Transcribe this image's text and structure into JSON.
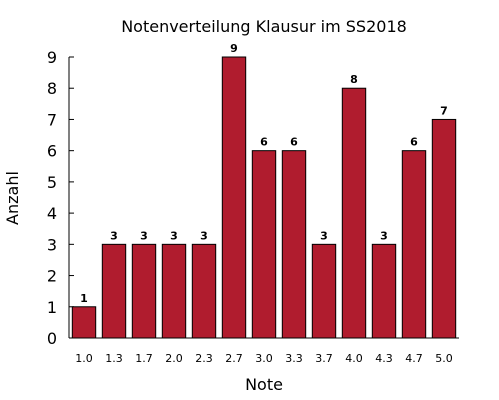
{
  "chart_data": {
    "type": "bar",
    "title": "Notenverteilung Klausur im SS2018",
    "xlabel": "Note",
    "ylabel": "Anzahl",
    "categories": [
      "1.0",
      "1.3",
      "1.7",
      "2.0",
      "2.3",
      "2.7",
      "3.0",
      "3.3",
      "3.7",
      "4.0",
      "4.3",
      "4.7",
      "5.0"
    ],
    "values": [
      1,
      3,
      3,
      3,
      3,
      9,
      6,
      6,
      3,
      8,
      3,
      6,
      7
    ],
    "ylim": [
      0,
      9
    ],
    "yticks": [
      "0",
      "1",
      "2",
      "3",
      "4",
      "5",
      "6",
      "7",
      "8",
      "9"
    ],
    "grid": false,
    "data_labels": true,
    "bar_color": "#b01c2e",
    "bar_edge_color": "#000000"
  }
}
